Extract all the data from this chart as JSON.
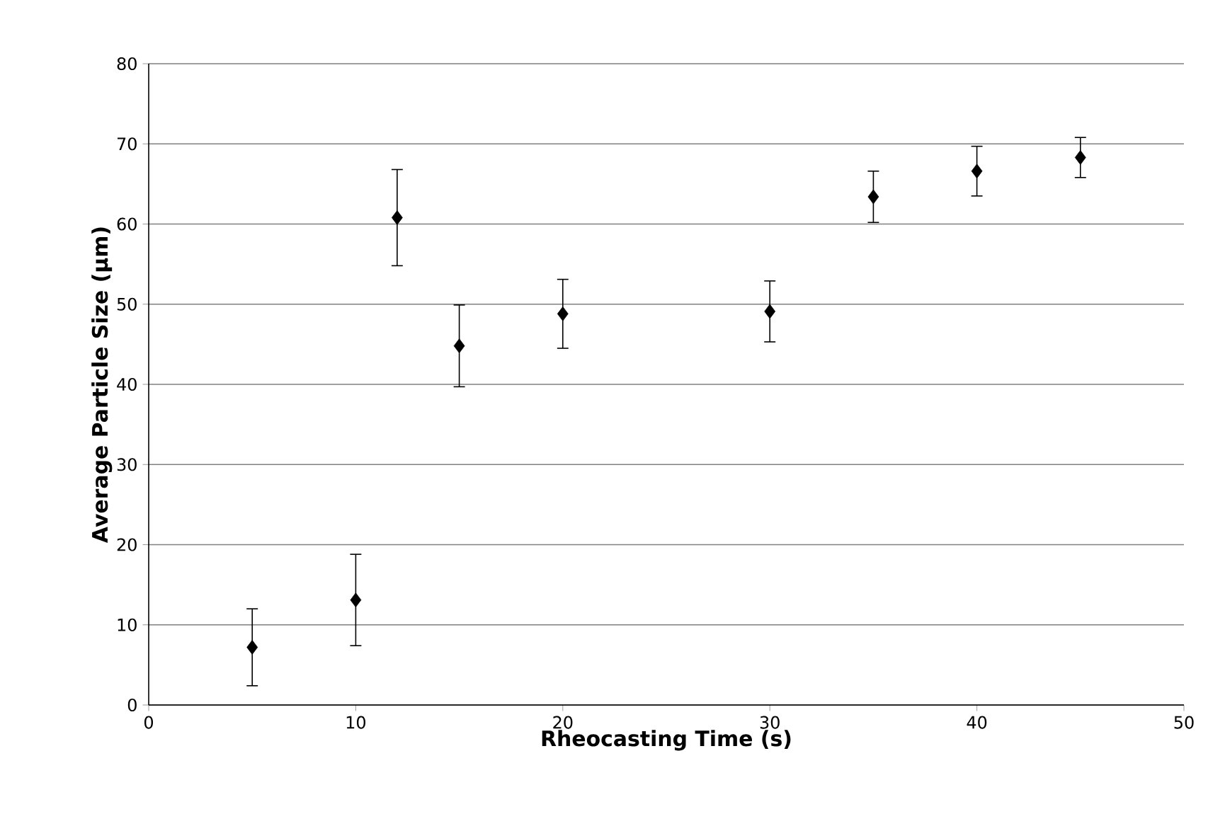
{
  "chart_data": {
    "type": "scatter",
    "xlabel": "Rheocasting Time (s)",
    "ylabel": "Average Particle Size (µm)",
    "x": [
      5,
      10,
      12,
      15,
      20,
      30,
      35,
      40,
      45
    ],
    "values": [
      7.2,
      13.1,
      60.8,
      44.8,
      48.8,
      49.1,
      63.4,
      66.6,
      68.3
    ],
    "errors": [
      4.8,
      5.7,
      6.0,
      5.1,
      4.3,
      3.8,
      3.2,
      3.1,
      2.5
    ],
    "color": "#000000",
    "marker": "diamond",
    "xlim": [
      0,
      50
    ],
    "xticks": [
      0,
      10,
      20,
      30,
      40,
      50
    ],
    "ylim": [
      0,
      80
    ],
    "yticks": [
      0,
      10,
      20,
      30,
      40,
      50,
      60,
      70,
      80
    ],
    "grid": "y"
  }
}
